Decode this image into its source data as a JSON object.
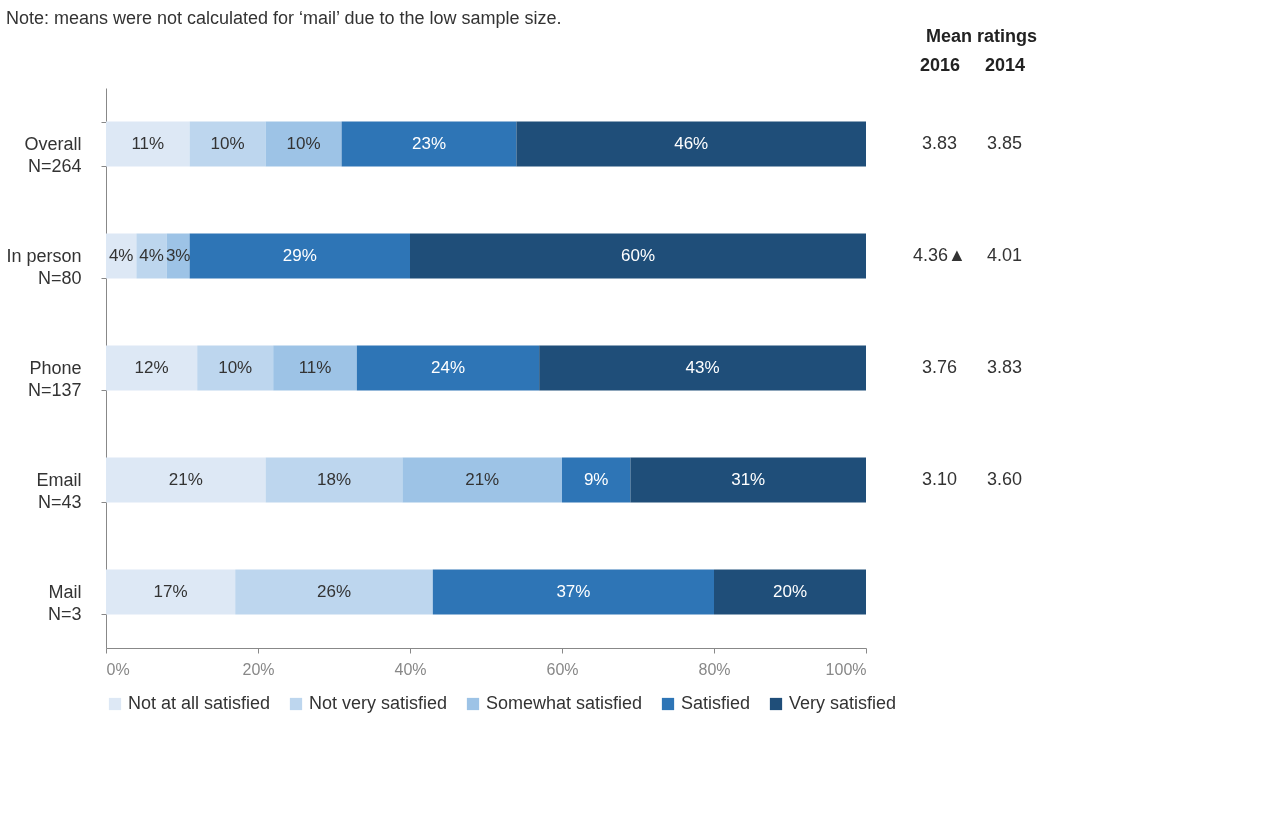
{
  "chart_data": {
    "type": "bar",
    "orientation": "horizontal",
    "stacked": true,
    "legend": "bottom",
    "categories": [
      "Overall\nN=264",
      "In person\nN=80",
      "Phone\nN=137",
      "Email\nN=43",
      "Mail\nN=3"
    ],
    "series": [
      {
        "name": "Not at all satisfied",
        "color": "#dde8f5",
        "values": [
          11,
          4,
          12,
          21,
          17
        ],
        "value_labels": [
          "11%",
          "4%",
          "12%",
          "21%",
          "17%"
        ]
      },
      {
        "name": "Not very satisfied",
        "color": "#bdd6ee",
        "values": [
          10,
          4,
          10,
          18,
          26
        ],
        "value_labels": [
          "10%",
          "4%",
          "10%",
          "18%",
          "26%"
        ]
      },
      {
        "name": "Somewhat satisfied",
        "color": "#9dc3e6",
        "values": [
          10,
          3,
          11,
          21,
          null
        ],
        "value_labels": [
          "10%",
          "3%",
          "11%",
          "21%",
          null
        ]
      },
      {
        "name": "Satisfied",
        "color": "#2e75b6",
        "values": [
          23,
          29,
          24,
          9,
          37
        ],
        "value_labels": [
          "23%",
          "29%",
          "24%",
          "9%",
          "37%"
        ]
      },
      {
        "name": "Very satisfied",
        "color": "#1f4e79",
        "values": [
          46,
          60,
          43,
          31,
          20
        ],
        "value_labels": [
          "46%",
          "60%",
          "43%",
          "31%",
          "20%"
        ]
      }
    ],
    "xlim": [
      0,
      100
    ],
    "xticks": [
      {
        "value": 0,
        "label": "0%"
      },
      {
        "value": 20,
        "label": "20%"
      },
      {
        "value": 40,
        "label": "40%"
      },
      {
        "value": 60,
        "label": "60%"
      },
      {
        "value": 80,
        "label": "80%"
      },
      {
        "value": 100,
        "label": "100%"
      }
    ],
    "annotations": [
      "Note: means were not calculated for ‘mail’ due to the low sample size.",
      "Mean ratings",
      "2016",
      "2014",
      "3.83",
      "3.85",
      "4.36▲",
      "4.01",
      "3.76",
      "3.83",
      "3.10",
      "3.60"
    ]
  }
}
